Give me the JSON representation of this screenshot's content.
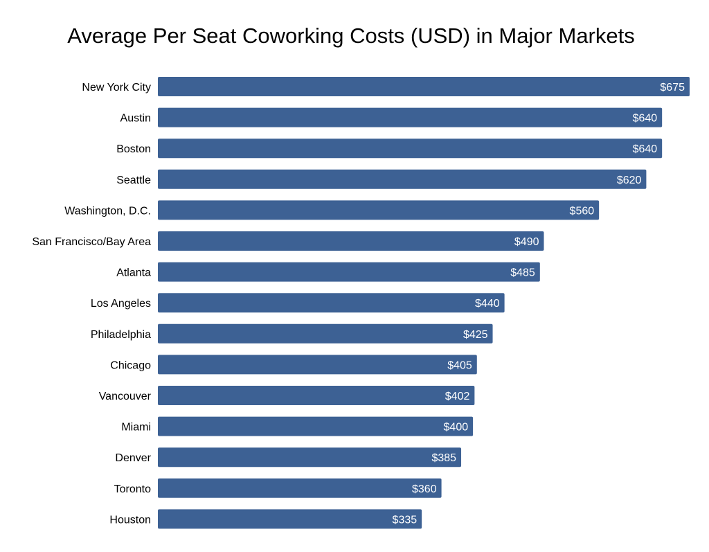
{
  "chart_data": {
    "type": "bar",
    "orientation": "horizontal",
    "title": "Average Per Seat Coworking Costs (USD) in Major Markets",
    "xlabel": "",
    "ylabel": "",
    "xlim": [
      0,
      675
    ],
    "bar_color": "#3d6194",
    "value_prefix": "$",
    "categories": [
      "New York City",
      "Austin",
      "Boston",
      "Seattle",
      "Washington, D.C.",
      "San Francisco/Bay Area",
      "Atlanta",
      "Los Angeles",
      "Philadelphia",
      "Chicago",
      "Vancouver",
      "Miami",
      "Denver",
      "Toronto",
      "Houston"
    ],
    "values": [
      675,
      640,
      640,
      620,
      560,
      490,
      485,
      440,
      425,
      405,
      402,
      400,
      385,
      360,
      335
    ],
    "value_labels": [
      "$675",
      "$640",
      "$640",
      "$620",
      "$560",
      "$490",
      "$485",
      "$440",
      "$425",
      "$405",
      "$402",
      "$400",
      "$385",
      "$360",
      "$335"
    ]
  }
}
